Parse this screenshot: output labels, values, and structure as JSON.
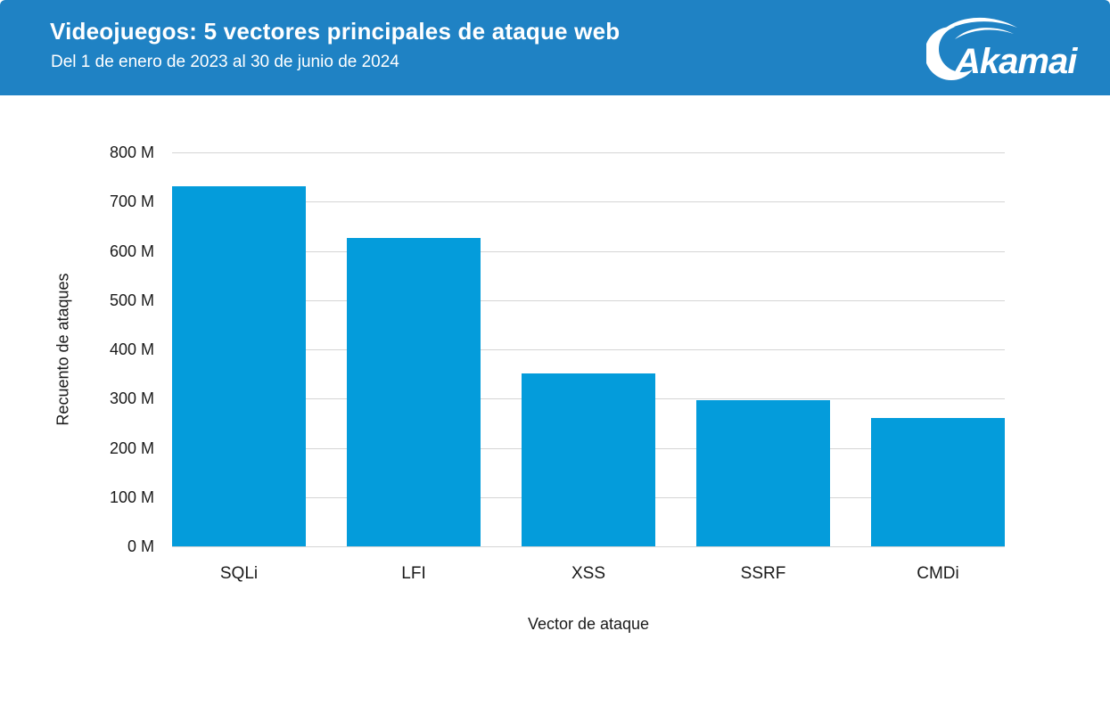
{
  "header": {
    "title": "Videojuegos: 5 vectores principales de ataque web",
    "subtitle": "Del 1 de enero de 2023 al 30 de junio de 2024",
    "logo_text": "Akamai"
  },
  "colors": {
    "header_bg": "#1F82C4",
    "header_text": "#FFFFFF",
    "bar": "#049CDB",
    "gridline": "#D5D5D5",
    "axis_text": "#1A1A1A"
  },
  "chart_data": {
    "type": "bar",
    "title": "Videojuegos: 5 vectores principales de ataque web",
    "subtitle": "Del 1 de enero de 2023 al 30 de junio de 2024",
    "categories": [
      "SQLi",
      "LFI",
      "XSS",
      "SSRF",
      "CMDi"
    ],
    "values": [
      731,
      627,
      352,
      297,
      260
    ],
    "unit": "M",
    "xlabel": "Vector de ataque",
    "ylabel": "Recuento de ataques",
    "ylim": [
      0,
      800
    ],
    "ytick_values": [
      0,
      100,
      200,
      300,
      400,
      500,
      600,
      700,
      800
    ],
    "ytick_labels": [
      "0 M",
      "100 M",
      "200 M",
      "300 M",
      "400 M",
      "500 M",
      "600 M",
      "700 M",
      "800 M"
    ],
    "grid": true,
    "legend": "none"
  }
}
